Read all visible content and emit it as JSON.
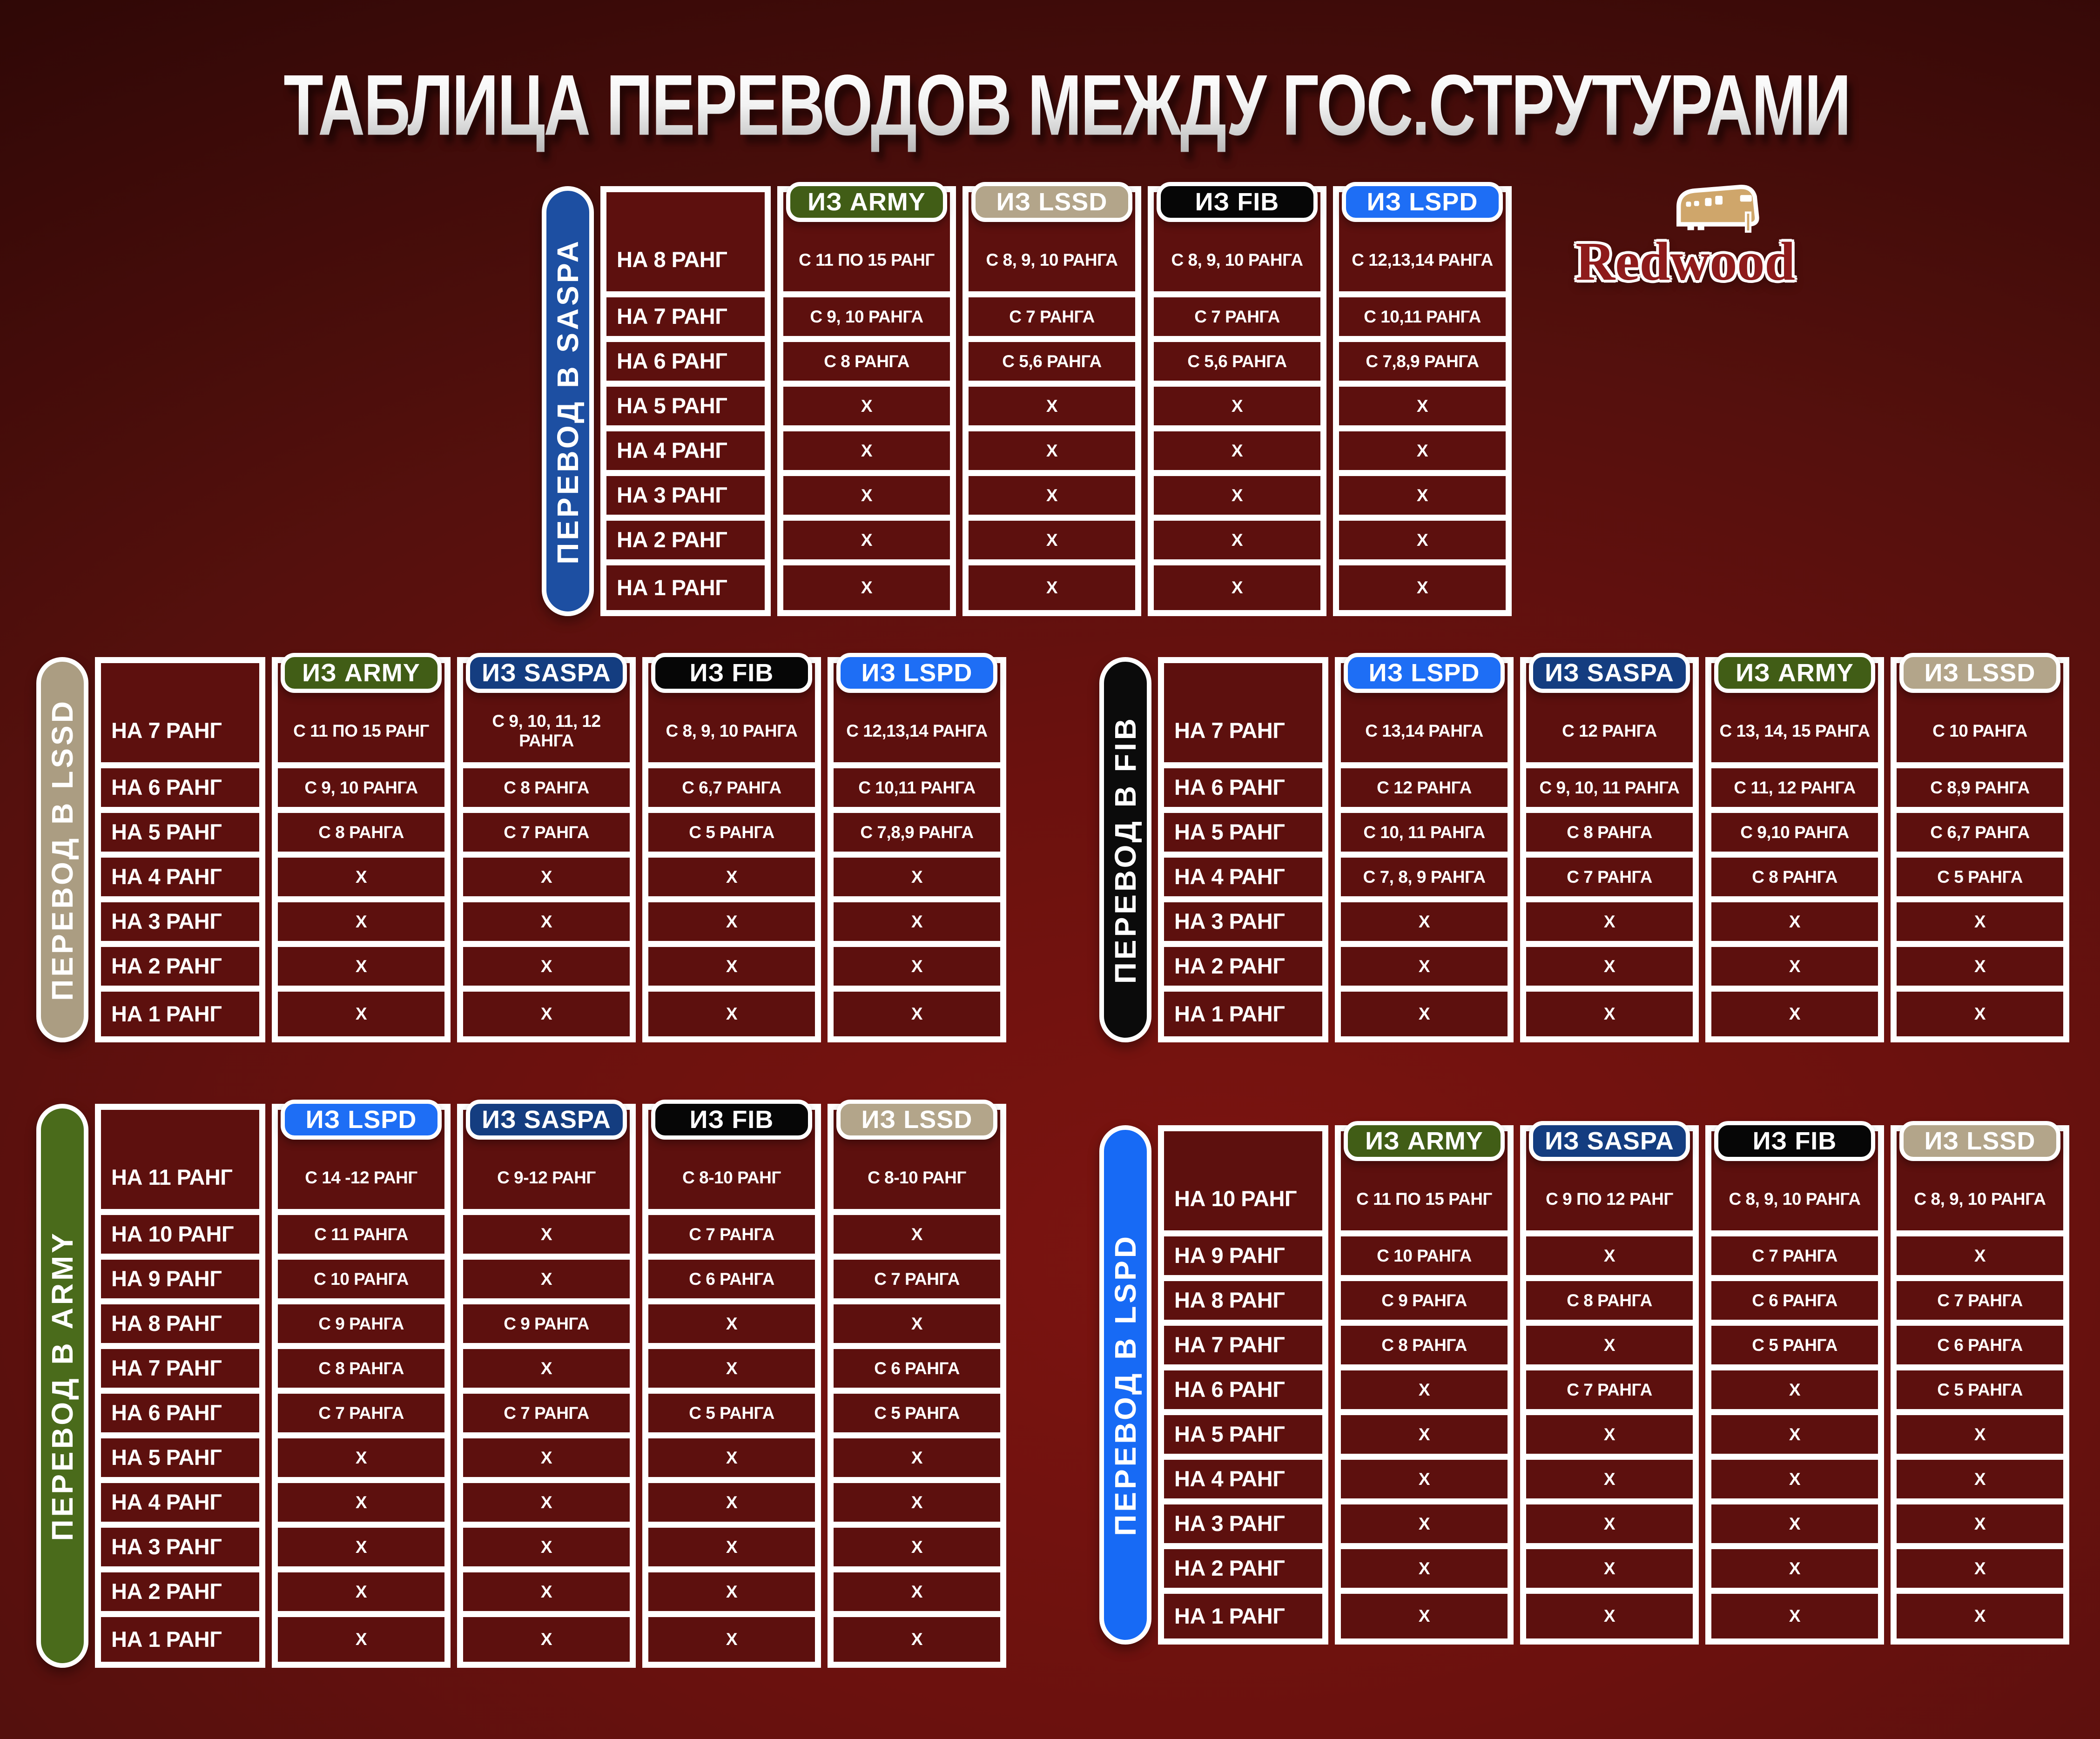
{
  "title": "ТАБЛИЦА ПЕРЕВОДОВ МЕЖДУ ГОС.СТРУТУРАМИ",
  "logo": {
    "name": "Redwood"
  },
  "palette": {
    "background_center": "#7c1410",
    "background_edge": "#240504",
    "cell_background": "#5d100e",
    "grid_border": "#ffffff",
    "army_green": "#415d16",
    "saspa_navy": "#143d80",
    "lssd_tan": "#b3a58a",
    "fib_black": "#060606",
    "lspd_blue": "#1e6ef5"
  },
  "tables": [
    {
      "id": "saspa",
      "side_label": "ПЕРЕВОД В SASPA",
      "accent": "#1d4fa2",
      "columns": [
        {
          "key": "army",
          "label": "ИЗ ARMY",
          "color": "#415d16"
        },
        {
          "key": "lssd",
          "label": "ИЗ LSSD",
          "color": "#b3a58a"
        },
        {
          "key": "fib",
          "label": "ИЗ FIB",
          "color": "#060606"
        },
        {
          "key": "lspd",
          "label": "ИЗ LSPD",
          "color": "#1e6ef5"
        }
      ],
      "rows": [
        {
          "label": "НА 8 РАНГ",
          "values": [
            "С 11 ПО 15 РАНГ",
            "С 8, 9, 10 РАНГА",
            "С 8, 9, 10 РАНГА",
            "С 12,13,14 РАНГА"
          ]
        },
        {
          "label": "НА 7 РАНГ",
          "values": [
            "С 9, 10 РАНГА",
            "С 7 РАНГА",
            "С 7 РАНГА",
            "С 10,11 РАНГА"
          ]
        },
        {
          "label": "НА 6 РАНГ",
          "values": [
            "С 8 РАНГА",
            "С 5,6 РАНГА",
            "С 5,6 РАНГА",
            "С 7,8,9 РАНГА"
          ]
        },
        {
          "label": "НА 5 РАНГ",
          "values": [
            "X",
            "X",
            "X",
            "X"
          ]
        },
        {
          "label": "НА 4 РАНГ",
          "values": [
            "X",
            "X",
            "X",
            "X"
          ]
        },
        {
          "label": "НА 3 РАНГ",
          "values": [
            "X",
            "X",
            "X",
            "X"
          ]
        },
        {
          "label": "НА 2 РАНГ",
          "values": [
            "X",
            "X",
            "X",
            "X"
          ]
        },
        {
          "label": "НА 1 РАНГ",
          "values": [
            "X",
            "X",
            "X",
            "X"
          ]
        }
      ]
    },
    {
      "id": "lssd",
      "side_label": "ПЕРЕВОД В LSSD",
      "accent": "#ab9d82",
      "columns": [
        {
          "key": "army",
          "label": "ИЗ ARMY",
          "color": "#415d16"
        },
        {
          "key": "saspa",
          "label": "ИЗ SASPA",
          "color": "#143d80"
        },
        {
          "key": "fib",
          "label": "ИЗ FIB",
          "color": "#060606"
        },
        {
          "key": "lspd",
          "label": "ИЗ LSPD",
          "color": "#1e6ef5"
        }
      ],
      "rows": [
        {
          "label": "НА 7 РАНГ",
          "values": [
            "С 11 ПО 15 РАНГ",
            "С 9, 10, 11, 12 РАНГА",
            "С 8, 9, 10 РАНГА",
            "С 12,13,14 РАНГА"
          ]
        },
        {
          "label": "НА 6 РАНГ",
          "values": [
            "С 9, 10 РАНГА",
            "С 8 РАНГА",
            "С 6,7 РАНГА",
            "С 10,11 РАНГА"
          ]
        },
        {
          "label": "НА 5 РАНГ",
          "values": [
            "С 8 РАНГА",
            "С 7 РАНГА",
            "С 5 РАНГА",
            "С 7,8,9 РАНГА"
          ]
        },
        {
          "label": "НА 4 РАНГ",
          "values": [
            "X",
            "X",
            "X",
            "X"
          ]
        },
        {
          "label": "НА 3 РАНГ",
          "values": [
            "X",
            "X",
            "X",
            "X"
          ]
        },
        {
          "label": "НА 2 РАНГ",
          "values": [
            "X",
            "X",
            "X",
            "X"
          ]
        },
        {
          "label": "НА 1 РАНГ",
          "values": [
            "X",
            "X",
            "X",
            "X"
          ]
        }
      ]
    },
    {
      "id": "fib",
      "side_label": "ПЕРЕВОД В FIB",
      "accent": "#0b0b0b",
      "columns": [
        {
          "key": "lspd",
          "label": "ИЗ LSPD",
          "color": "#1e6ef5"
        },
        {
          "key": "saspa",
          "label": "ИЗ SASPA",
          "color": "#143d80"
        },
        {
          "key": "army",
          "label": "ИЗ ARMY",
          "color": "#415d16"
        },
        {
          "key": "lssd",
          "label": "ИЗ LSSD",
          "color": "#b3a58a"
        }
      ],
      "rows": [
        {
          "label": "НА 7 РАНГ",
          "values": [
            "С 13,14 РАНГА",
            "С 12 РАНГА",
            "С 13, 14, 15 РАНГА",
            "С 10 РАНГА"
          ]
        },
        {
          "label": "НА 6 РАНГ",
          "values": [
            "С 12 РАНГА",
            "С 9, 10, 11 РАНГА",
            "С 11, 12 РАНГА",
            "С 8,9 РАНГА"
          ]
        },
        {
          "label": "НА 5 РАНГ",
          "values": [
            "С 10, 11 РАНГА",
            "С 8 РАНГА",
            "С 9,10 РАНГА",
            "С 6,7 РАНГА"
          ]
        },
        {
          "label": "НА 4 РАНГ",
          "values": [
            "С 7, 8, 9 РАНГА",
            "С 7 РАНГА",
            "С 8 РАНГА",
            "С 5 РАНГА"
          ]
        },
        {
          "label": "НА 3 РАНГ",
          "values": [
            "X",
            "X",
            "X",
            "X"
          ]
        },
        {
          "label": "НА 2 РАНГ",
          "values": [
            "X",
            "X",
            "X",
            "X"
          ]
        },
        {
          "label": "НА 1 РАНГ",
          "values": [
            "X",
            "X",
            "X",
            "X"
          ]
        }
      ]
    },
    {
      "id": "army",
      "side_label": "ПЕРЕВОД В ARMY",
      "accent": "#4a6b1b",
      "columns": [
        {
          "key": "lspd",
          "label": "ИЗ LSPD",
          "color": "#1e6ef5"
        },
        {
          "key": "saspa",
          "label": "ИЗ SASPA",
          "color": "#143d80"
        },
        {
          "key": "fib",
          "label": "ИЗ FIB",
          "color": "#060606"
        },
        {
          "key": "lssd",
          "label": "ИЗ LSSD",
          "color": "#b3a58a"
        }
      ],
      "rows": [
        {
          "label": "НА 11 РАНГ",
          "values": [
            "С 14 -12 РАНГ",
            "С 9-12 РАНГ",
            "С 8-10 РАНГ",
            "С 8-10 РАНГ"
          ]
        },
        {
          "label": "НА 10 РАНГ",
          "values": [
            "С 11 РАНГА",
            "X",
            "С 7 РАНГА",
            "X"
          ]
        },
        {
          "label": "НА 9 РАНГ",
          "values": [
            "С 10 РАНГА",
            "X",
            "С 6 РАНГА",
            "С 7 РАНГА"
          ]
        },
        {
          "label": "НА 8 РАНГ",
          "values": [
            "С 9 РАНГА",
            "С 9 РАНГА",
            "X",
            "X"
          ]
        },
        {
          "label": "НА 7 РАНГ",
          "values": [
            "С 8 РАНГА",
            "X",
            "X",
            "С 6 РАНГА"
          ]
        },
        {
          "label": "НА 6 РАНГ",
          "values": [
            "С 7 РАНГА",
            "С 7 РАНГА",
            "С 5 РАНГА",
            "С 5 РАНГА"
          ]
        },
        {
          "label": "НА 5 РАНГ",
          "values": [
            "X",
            "X",
            "X",
            "X"
          ]
        },
        {
          "label": "НА 4 РАНГ",
          "values": [
            "X",
            "X",
            "X",
            "X"
          ]
        },
        {
          "label": "НА 3 РАНГ",
          "values": [
            "X",
            "X",
            "X",
            "X"
          ]
        },
        {
          "label": "НА 2 РАНГ",
          "values": [
            "X",
            "X",
            "X",
            "X"
          ]
        },
        {
          "label": "НА 1 РАНГ",
          "values": [
            "X",
            "X",
            "X",
            "X"
          ]
        }
      ]
    },
    {
      "id": "lspd",
      "side_label": "ПЕРЕВОД В LSPD",
      "accent": "#176af5",
      "columns": [
        {
          "key": "army",
          "label": "ИЗ ARMY",
          "color": "#415d16"
        },
        {
          "key": "saspa",
          "label": "ИЗ SASPA",
          "color": "#143d80"
        },
        {
          "key": "fib",
          "label": "ИЗ FIB",
          "color": "#060606"
        },
        {
          "key": "lssd",
          "label": "ИЗ LSSD",
          "color": "#b3a58a"
        }
      ],
      "rows": [
        {
          "label": "НА 10 РАНГ",
          "values": [
            "С 11 ПО 15 РАНГ",
            "С 9 ПО 12 РАНГ",
            "С 8, 9, 10 РАНГА",
            "С 8, 9, 10 РАНГА"
          ]
        },
        {
          "label": "НА 9 РАНГ",
          "values": [
            "С 10 РАНГА",
            "X",
            "С 7 РАНГА",
            "X"
          ]
        },
        {
          "label": "НА 8 РАНГ",
          "values": [
            "С 9 РАНГА",
            "С 8 РАНГА",
            "С 6 РАНГА",
            "С 7 РАНГА"
          ]
        },
        {
          "label": "НА 7 РАНГ",
          "values": [
            "С 8 РАНГА",
            "X",
            "С 5 РАНГА",
            "С 6 РАНГА"
          ]
        },
        {
          "label": "НА 6 РАНГ",
          "values": [
            "X",
            "С 7 РАНГА",
            "X",
            "С 5 РАНГА"
          ]
        },
        {
          "label": "НА 5 РАНГ",
          "values": [
            "X",
            "X",
            "X",
            "X"
          ]
        },
        {
          "label": "НА 4 РАНГ",
          "values": [
            "X",
            "X",
            "X",
            "X"
          ]
        },
        {
          "label": "НА 3 РАНГ",
          "values": [
            "X",
            "X",
            "X",
            "X"
          ]
        },
        {
          "label": "НА 2 РАНГ",
          "values": [
            "X",
            "X",
            "X",
            "X"
          ]
        },
        {
          "label": "НА 1 РАНГ",
          "values": [
            "X",
            "X",
            "X",
            "X"
          ]
        }
      ]
    }
  ]
}
